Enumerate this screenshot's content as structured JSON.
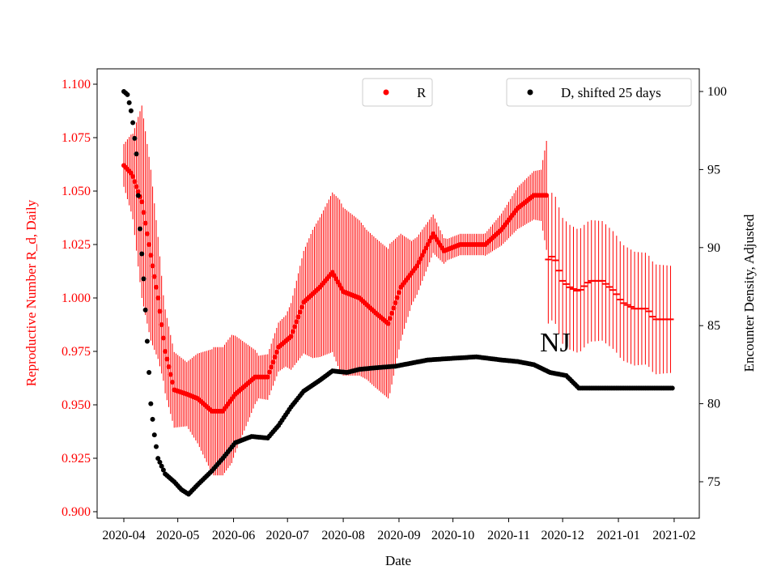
{
  "chart_data": {
    "type": "scatter",
    "annotation": "NJ",
    "xlabel": "Date",
    "ylabel_left": "Reproductive Number R_d, Daily",
    "ylabel_right": "Encounter Density, Adjusted",
    "x_start_date": "2020-04-01",
    "x_ticks": [
      "2020-04",
      "2020-05",
      "2020-06",
      "2020-07",
      "2020-08",
      "2020-09",
      "2020-10",
      "2020-11",
      "2020-12",
      "2021-01",
      "2021-02"
    ],
    "x_tick_days": [
      0,
      30,
      61,
      91,
      122,
      153,
      183,
      214,
      244,
      275,
      306
    ],
    "ylim_left": [
      0.897,
      1.104
    ],
    "yticks_left": [
      "0.900",
      "0.925",
      "0.950",
      "0.975",
      "1.000",
      "1.025",
      "1.050",
      "1.075",
      "1.100"
    ],
    "ylim_right": [
      72.8,
      101.2
    ],
    "yticks_right": [
      "75",
      "80",
      "85",
      "90",
      "95",
      "100"
    ],
    "colors": {
      "R": "#ff0000",
      "D": "#000000",
      "left_axis_text": "#ff0000"
    },
    "legend": [
      {
        "label": "R",
        "color": "#ff0000",
        "placement": "top-center"
      },
      {
        "label": "D, shifted 25 days",
        "color": "#000000",
        "placement": "top-right"
      }
    ],
    "series_R": {
      "name": "R",
      "points_day_value": [
        [
          0,
          1.062
        ],
        [
          4.5,
          1.058
        ],
        [
          10,
          1.045
        ],
        [
          14,
          1.025
        ],
        [
          19,
          1.0
        ],
        [
          23,
          0.975
        ],
        [
          28,
          0.957
        ],
        [
          35,
          0.955
        ],
        [
          41,
          0.953
        ],
        [
          49,
          0.947
        ],
        [
          55,
          0.947
        ],
        [
          62,
          0.955
        ],
        [
          73,
          0.963
        ],
        [
          80,
          0.963
        ],
        [
          86,
          0.977
        ],
        [
          93,
          0.982
        ],
        [
          100,
          0.998
        ],
        [
          109,
          1.005
        ],
        [
          116,
          1.012
        ],
        [
          122,
          1.003
        ],
        [
          131,
          1.0
        ],
        [
          140,
          0.993
        ],
        [
          147,
          0.988
        ],
        [
          154,
          1.005
        ],
        [
          163,
          1.015
        ],
        [
          172,
          1.03
        ],
        [
          178,
          1.022
        ],
        [
          187,
          1.025
        ],
        [
          201,
          1.025
        ],
        [
          210,
          1.032
        ],
        [
          219,
          1.042
        ],
        [
          228,
          1.048
        ],
        [
          235,
          1.048
        ],
        [
          236,
          1.018
        ],
        [
          239,
          1.02
        ],
        [
          244,
          1.008
        ],
        [
          248,
          1.005
        ],
        [
          253,
          1.003
        ],
        [
          259,
          1.008
        ],
        [
          266,
          1.008
        ],
        [
          273,
          1.003
        ],
        [
          277,
          0.998
        ],
        [
          284,
          0.995
        ],
        [
          291,
          0.995
        ],
        [
          295,
          0.99
        ],
        [
          302,
          0.99
        ],
        [
          305,
          0.99
        ]
      ],
      "error_halfwidth_day_value": [
        [
          0,
          0.01
        ],
        [
          5,
          0.02
        ],
        [
          10,
          0.045
        ],
        [
          15,
          0.04
        ],
        [
          22,
          0.02
        ],
        [
          35,
          0.015
        ],
        [
          50,
          0.03
        ],
        [
          60,
          0.03
        ],
        [
          75,
          0.01
        ],
        [
          90,
          0.012
        ],
        [
          105,
          0.03
        ],
        [
          120,
          0.04
        ],
        [
          135,
          0.035
        ],
        [
          148,
          0.035
        ],
        [
          160,
          0.015
        ],
        [
          180,
          0.005
        ],
        [
          200,
          0.005
        ],
        [
          220,
          0.01
        ],
        [
          232,
          0.012
        ],
        [
          236,
          0.03
        ],
        [
          266,
          0.028
        ],
        [
          305,
          0.025
        ]
      ]
    },
    "series_D": {
      "name": "D, shifted 25 days",
      "points_day_value": [
        [
          0,
          100
        ],
        [
          2,
          99.8
        ],
        [
          4.5,
          98.5
        ],
        [
          7,
          96
        ],
        [
          8.5,
          92
        ],
        [
          11,
          88
        ],
        [
          13,
          84
        ],
        [
          15,
          80
        ],
        [
          17,
          78
        ],
        [
          19,
          76.5
        ],
        [
          23,
          75.5
        ],
        [
          28,
          75
        ],
        [
          32,
          74.5
        ],
        [
          36,
          74.2
        ],
        [
          41,
          74.8
        ],
        [
          49,
          75.7
        ],
        [
          55,
          76.5
        ],
        [
          62,
          77.5
        ],
        [
          71,
          77.9
        ],
        [
          80,
          77.8
        ],
        [
          86,
          78.6
        ],
        [
          93,
          79.8
        ],
        [
          100,
          80.8
        ],
        [
          109,
          81.5
        ],
        [
          116,
          82.1
        ],
        [
          124,
          82
        ],
        [
          131,
          82.2
        ],
        [
          140,
          82.3
        ],
        [
          151,
          82.4
        ],
        [
          160,
          82.6
        ],
        [
          169,
          82.8
        ],
        [
          182,
          82.9
        ],
        [
          196,
          83
        ],
        [
          210,
          82.8
        ],
        [
          219,
          82.7
        ],
        [
          228,
          82.5
        ],
        [
          237,
          82.0
        ],
        [
          246,
          81.8
        ],
        [
          253,
          81.0
        ],
        [
          305,
          81.0
        ]
      ]
    }
  }
}
